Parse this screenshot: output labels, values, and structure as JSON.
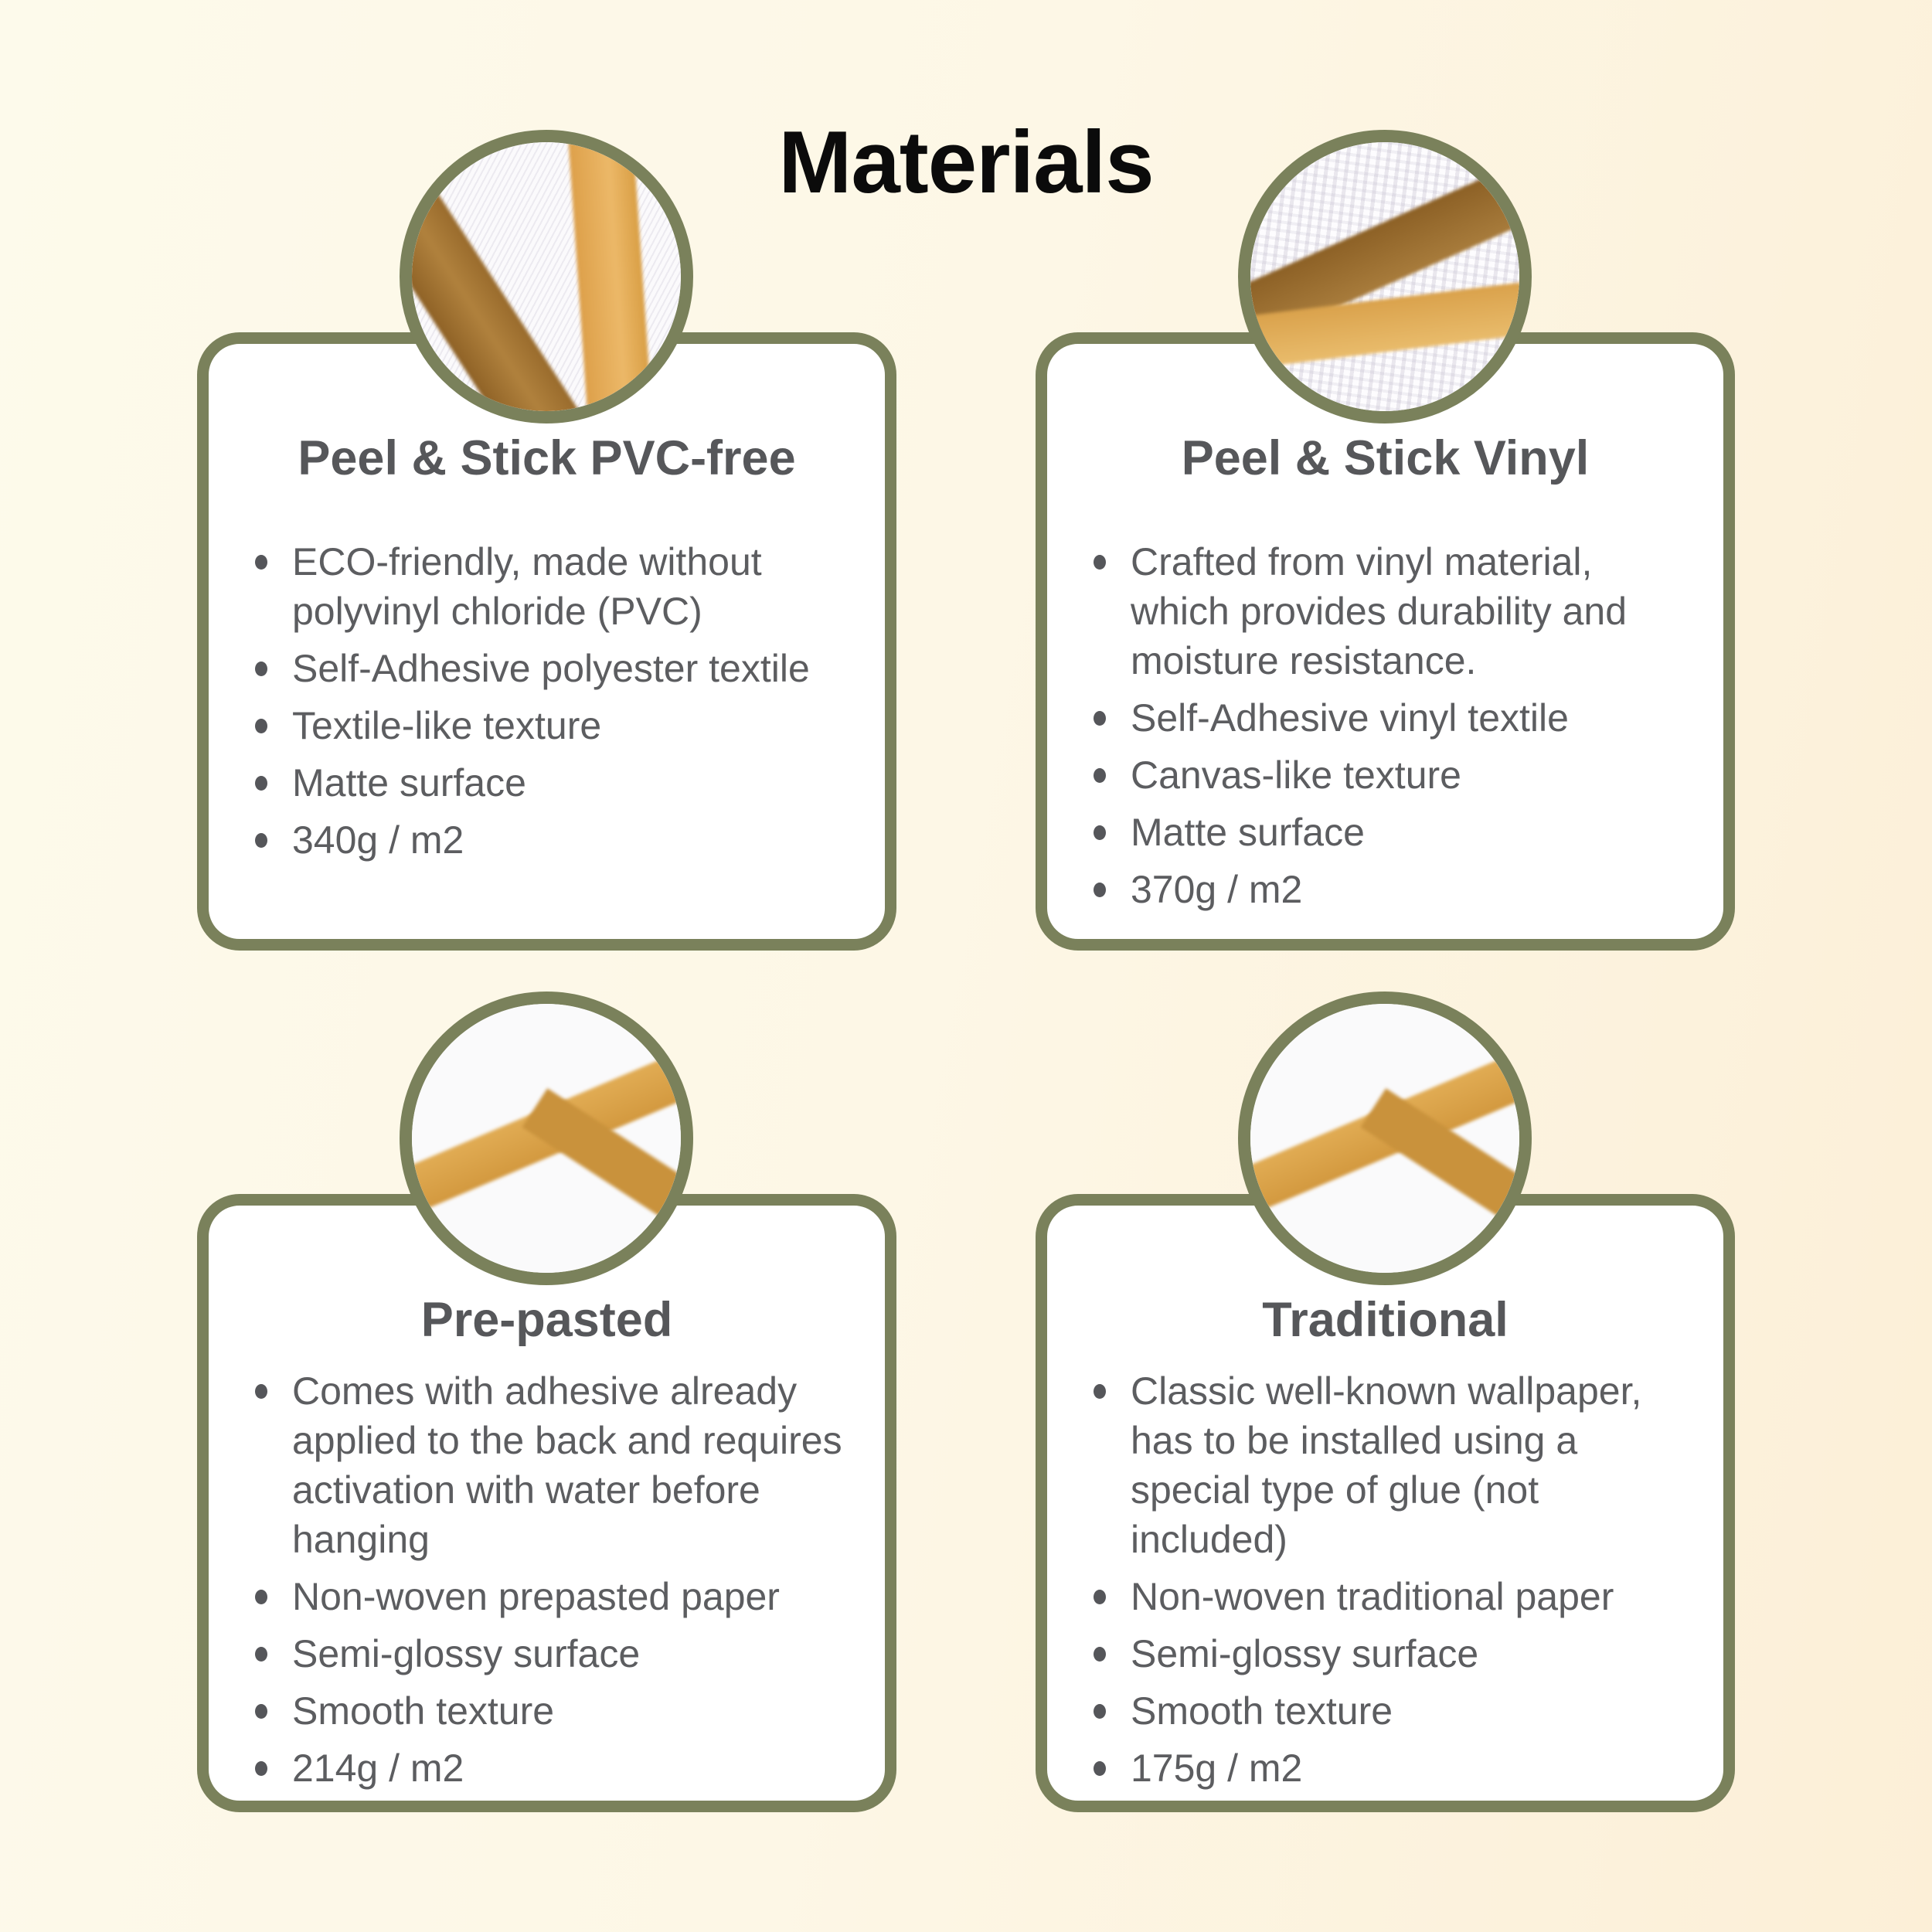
{
  "page": {
    "title": "Materials"
  },
  "colors": {
    "accent_olive": "#7a815b",
    "card_background": "#ffffff",
    "background_left": "#fdfaeb",
    "background_right": "#fcefd7",
    "title_text": "#0b0b0b",
    "heading_text": "#56575a",
    "body_text": "#5c5d60",
    "stripe_dark_brown": "#996b2c",
    "stripe_gold": "#dda04a"
  },
  "cards": [
    {
      "heading": "Peel & Stick PVC-free",
      "swatch": "textile-texture-closeup-with-brown-and-gold-stripes",
      "bullets": [
        "ECO-friendly, made without polyvinyl chloride (PVC)",
        "Self-Adhesive polyester textile",
        "Textile-like texture",
        "Matte surface",
        "340g / m2"
      ]
    },
    {
      "heading": "Peel & Stick Vinyl",
      "swatch": "canvas-texture-closeup-with-brown-and-gold-stripes",
      "bullets": [
        "Crafted from vinyl material, which provides durability and moisture resistance.",
        "Self-Adhesive vinyl textile",
        "Canvas-like texture",
        "Matte surface",
        "370g / m2"
      ]
    },
    {
      "heading": "Pre-pasted",
      "swatch": "smooth-paper-closeup-with-branching-gold-lines",
      "bullets": [
        "Comes with adhesive already applied to the back and requires activation with water before hanging",
        "Non-woven prepasted paper",
        "Semi-glossy surface",
        "Smooth texture",
        "214g / m2"
      ]
    },
    {
      "heading": "Traditional",
      "swatch": "smooth-paper-closeup-with-branching-gold-lines",
      "bullets": [
        "Classic well-known wallpaper, has to be installed using a special type of glue (not included)",
        "Non-woven traditional paper",
        "Semi-glossy surface",
        "Smooth texture",
        "175g / m2"
      ]
    }
  ]
}
